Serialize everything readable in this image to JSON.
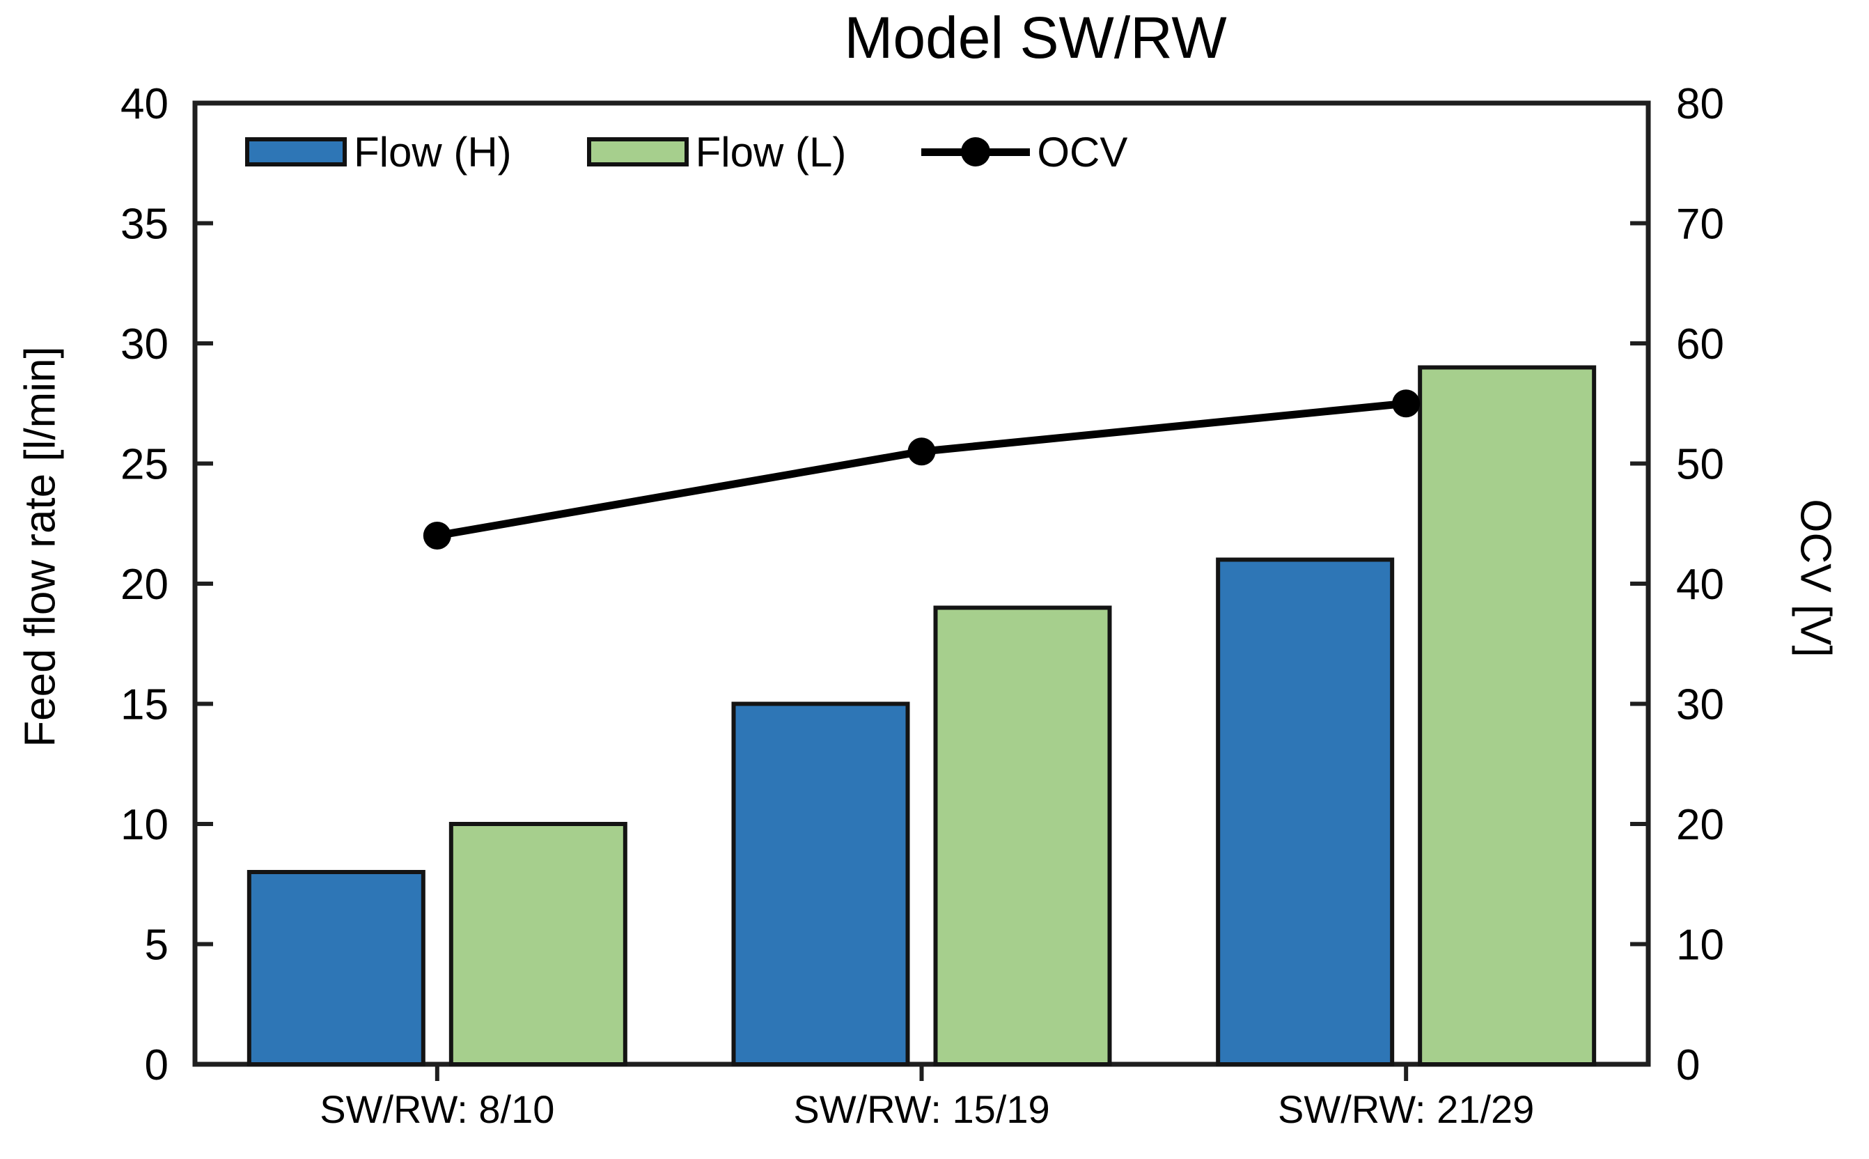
{
  "chart_data": {
    "type": "bar",
    "subtype": "combo-bar-line-dual-axis",
    "title": "Model SW/RW",
    "categories": [
      "SW/RW: 8/10",
      "SW/RW: 15/19",
      "SW/RW: 21/29"
    ],
    "series": [
      {
        "name": "Flow (H)",
        "type": "bar",
        "axis": "left",
        "values": [
          8,
          15,
          21
        ],
        "color": "#2E76B6"
      },
      {
        "name": "Flow (L)",
        "type": "bar",
        "axis": "left",
        "values": [
          10,
          19,
          29
        ],
        "color": "#A6CF8D"
      },
      {
        "name": "OCV",
        "type": "line",
        "axis": "right",
        "values": [
          44,
          51,
          55
        ],
        "color": "#000000"
      }
    ],
    "left_axis": {
      "label": "Feed flow rate [l/min]",
      "min": 0,
      "max": 40,
      "step": 5,
      "ticks": [
        0,
        5,
        10,
        15,
        20,
        25,
        30,
        35,
        40
      ]
    },
    "right_axis": {
      "label": "OCV [V]",
      "min": 0,
      "max": 80,
      "step": 10,
      "ticks": [
        0,
        10,
        20,
        30,
        40,
        50,
        60,
        70,
        80
      ]
    },
    "grid": false,
    "legend": {
      "position": "top-inside",
      "items": [
        "Flow (H)",
        "Flow (L)",
        "OCV"
      ]
    },
    "colors": {
      "axis": "#1f1f1f",
      "text": "#000000",
      "bar_border": "#141414"
    }
  }
}
